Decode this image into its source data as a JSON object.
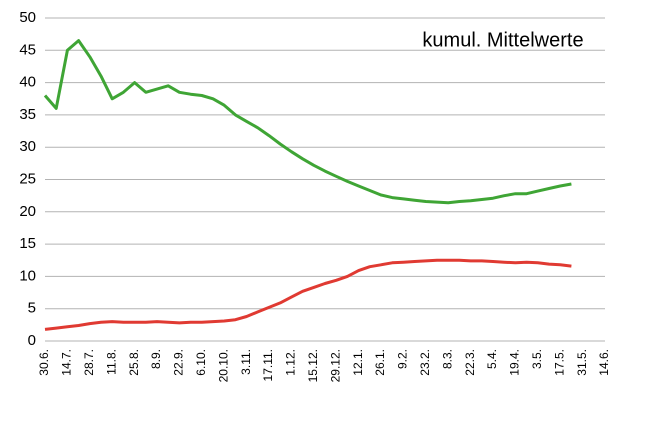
{
  "chart_data": {
    "type": "line",
    "title": "kumul. Mittelwerte",
    "categories": [
      "30.6.",
      null,
      "14.7.",
      null,
      "28.7.",
      null,
      "11.8.",
      null,
      "25.8.",
      null,
      "8.9.",
      null,
      "22.9.",
      null,
      "6.10.",
      null,
      "20.10.",
      null,
      "3.11.",
      null,
      "17.11.",
      null,
      "1.12.",
      null,
      "15.12.",
      null,
      "29.12.",
      null,
      "12.1.",
      null,
      "26.1.",
      null,
      "9.2.",
      null,
      "23.2.",
      null,
      "8.3.",
      null,
      "22.3.",
      null,
      "5.4.",
      null,
      "19.4.",
      null,
      "3.5.",
      null,
      "17.5.",
      null,
      "31.5.",
      null,
      "14.6."
    ],
    "series": [
      {
        "color": "#3fa535",
        "values": [
          38,
          36,
          45,
          46.5,
          44,
          41,
          37.5,
          38.5,
          40,
          38.5,
          39,
          39.5,
          38.5,
          38.2,
          38,
          37.5,
          36.5,
          35,
          34,
          33,
          31.8,
          30.5,
          29.3,
          28.2,
          27.2,
          26.3,
          25.5,
          24.7,
          24,
          23.3,
          22.6,
          22.2,
          22,
          21.8,
          21.6,
          21.5,
          21.4,
          21.6,
          21.7,
          21.9,
          22.1,
          22.5,
          22.8,
          22.8,
          23.2,
          23.6,
          24,
          24.3,
          null,
          null,
          null
        ]
      },
      {
        "color": "#e03a32",
        "values": [
          1.8,
          2.0,
          2.2,
          2.4,
          2.7,
          2.9,
          3.0,
          2.9,
          2.9,
          2.9,
          3.0,
          2.9,
          2.8,
          2.9,
          2.9,
          3.0,
          3.1,
          3.3,
          3.8,
          4.5,
          5.2,
          5.9,
          6.8,
          7.7,
          8.3,
          8.9,
          9.4,
          10.0,
          10.9,
          11.5,
          11.8,
          12.1,
          12.2,
          12.3,
          12.4,
          12.5,
          12.5,
          12.5,
          12.4,
          12.4,
          12.3,
          12.2,
          12.1,
          12.2,
          12.1,
          11.9,
          11.8,
          11.6,
          null,
          null,
          null
        ]
      }
    ],
    "ylim": [
      0,
      50
    ],
    "yticks": [
      0,
      5,
      10,
      15,
      20,
      25,
      30,
      35,
      40,
      45,
      50
    ],
    "grid": true
  }
}
